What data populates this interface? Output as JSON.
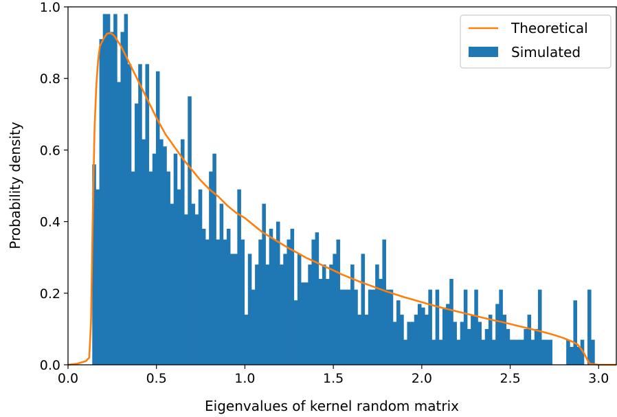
{
  "chart_data": {
    "type": "bar",
    "title": "",
    "xlabel": "Eigenvalues of kernel random matrix",
    "ylabel": "Probability density",
    "xlim": [
      0.0,
      3.1
    ],
    "ylim": [
      0.0,
      1.0
    ],
    "x_ticks": [
      0.0,
      0.5,
      1.0,
      1.5,
      2.0,
      2.5,
      3.0
    ],
    "x_tick_labels": [
      "0.0",
      "0.5",
      "1.0",
      "1.5",
      "2.0",
      "2.5",
      "3.0"
    ],
    "y_ticks": [
      0.0,
      0.2,
      0.4,
      0.6,
      0.8,
      1.0
    ],
    "y_tick_labels": [
      "0.0",
      "0.2",
      "0.4",
      "0.6",
      "0.8",
      "1.0"
    ],
    "grid": false,
    "legend_position": "top-right",
    "legend": [
      "Theoretical",
      "Simulated"
    ],
    "colors": {
      "histogram": "#1f77b4",
      "curve": "#ff7f0e"
    },
    "histogram": {
      "name": "Simulated",
      "bin_start": 0.137,
      "bin_width": 0.02,
      "values": [
        0.56,
        0.49,
        0.91,
        0.98,
        0.98,
        0.93,
        0.98,
        0.79,
        0.93,
        0.98,
        0.84,
        0.54,
        0.73,
        0.84,
        0.63,
        0.84,
        0.54,
        0.59,
        0.82,
        0.63,
        0.61,
        0.54,
        0.45,
        0.59,
        0.49,
        0.63,
        0.42,
        0.75,
        0.45,
        0.42,
        0.49,
        0.38,
        0.35,
        0.54,
        0.59,
        0.35,
        0.45,
        0.35,
        0.38,
        0.31,
        0.31,
        0.49,
        0.35,
        0.14,
        0.31,
        0.21,
        0.28,
        0.35,
        0.45,
        0.28,
        0.38,
        0.35,
        0.4,
        0.28,
        0.31,
        0.35,
        0.38,
        0.18,
        0.31,
        0.23,
        0.23,
        0.28,
        0.35,
        0.37,
        0.24,
        0.28,
        0.24,
        0.28,
        0.31,
        0.35,
        0.21,
        0.21,
        0.21,
        0.28,
        0.21,
        0.14,
        0.31,
        0.14,
        0.21,
        0.21,
        0.28,
        0.24,
        0.35,
        0.21,
        0.21,
        0.12,
        0.18,
        0.14,
        0.07,
        0.12,
        0.12,
        0.14,
        0.17,
        0.16,
        0.14,
        0.21,
        0.07,
        0.21,
        0.07,
        0.16,
        0.17,
        0.24,
        0.12,
        0.07,
        0.12,
        0.21,
        0.1,
        0.14,
        0.21,
        0.12,
        0.07,
        0.1,
        0.14,
        0.07,
        0.17,
        0.21,
        0.14,
        0.1,
        0.07,
        0.07,
        0.07,
        0.07,
        0.1,
        0.14,
        0.07,
        0.1,
        0.21,
        0.07,
        0.07,
        0.07,
        0.0,
        0.0,
        0.0,
        0.0,
        0.07,
        0.05,
        0.18,
        0.05,
        0.07,
        0.0,
        0.21,
        0.07,
        0.0,
        0.0,
        0.0,
        0.0,
        0.0,
        0.0,
        0.0,
        0.0,
        0.0,
        0.0,
        0.0,
        0.0,
        0.0,
        0.0,
        0.0,
        0.0,
        0.0,
        0.0,
        0.0,
        0.0,
        0.0,
        0.0,
        0.0,
        0.0,
        0.0,
        0.0,
        0.0,
        0.0,
        0.0,
        0.0,
        0.0,
        0.0,
        0.0,
        0.0,
        0.0,
        0.0,
        0.0,
        0.0,
        0.0,
        0.0,
        0.0,
        0.0,
        0.0,
        0.0,
        0.0,
        0.0,
        0.0,
        0.0,
        0.0,
        0.0,
        0.0,
        0.0,
        0.0,
        0.0,
        0.0
      ]
    },
    "curve": {
      "name": "Theoretical",
      "x": [
        0.0,
        0.05,
        0.1,
        0.12,
        0.13,
        0.14,
        0.15,
        0.16,
        0.17,
        0.18,
        0.19,
        0.2,
        0.22,
        0.24,
        0.26,
        0.28,
        0.3,
        0.33,
        0.36,
        0.4,
        0.45,
        0.5,
        0.55,
        0.6,
        0.65,
        0.7,
        0.75,
        0.8,
        0.85,
        0.9,
        0.95,
        1.0,
        1.05,
        1.1,
        1.15,
        1.2,
        1.25,
        1.3,
        1.35,
        1.4,
        1.45,
        1.5,
        1.55,
        1.6,
        1.65,
        1.7,
        1.75,
        1.8,
        1.85,
        1.9,
        1.95,
        2.0,
        2.05,
        2.1,
        2.15,
        2.2,
        2.25,
        2.3,
        2.35,
        2.4,
        2.45,
        2.5,
        2.55,
        2.6,
        2.65,
        2.7,
        2.75,
        2.8,
        2.85,
        2.88,
        2.9,
        2.92,
        2.935,
        2.95,
        3.0,
        3.1
      ],
      "y": [
        0.0,
        0.003,
        0.01,
        0.02,
        0.12,
        0.42,
        0.66,
        0.78,
        0.85,
        0.89,
        0.9,
        0.91,
        0.925,
        0.927,
        0.92,
        0.905,
        0.89,
        0.86,
        0.83,
        0.79,
        0.74,
        0.69,
        0.645,
        0.61,
        0.575,
        0.545,
        0.515,
        0.49,
        0.47,
        0.445,
        0.425,
        0.41,
        0.39,
        0.37,
        0.355,
        0.34,
        0.325,
        0.312,
        0.298,
        0.287,
        0.275,
        0.264,
        0.252,
        0.242,
        0.232,
        0.223,
        0.214,
        0.205,
        0.197,
        0.189,
        0.182,
        0.175,
        0.168,
        0.161,
        0.155,
        0.149,
        0.143,
        0.137,
        0.131,
        0.125,
        0.12,
        0.114,
        0.108,
        0.102,
        0.096,
        0.09,
        0.083,
        0.075,
        0.065,
        0.057,
        0.045,
        0.03,
        0.015,
        0.003,
        0.0,
        0.0
      ]
    }
  }
}
